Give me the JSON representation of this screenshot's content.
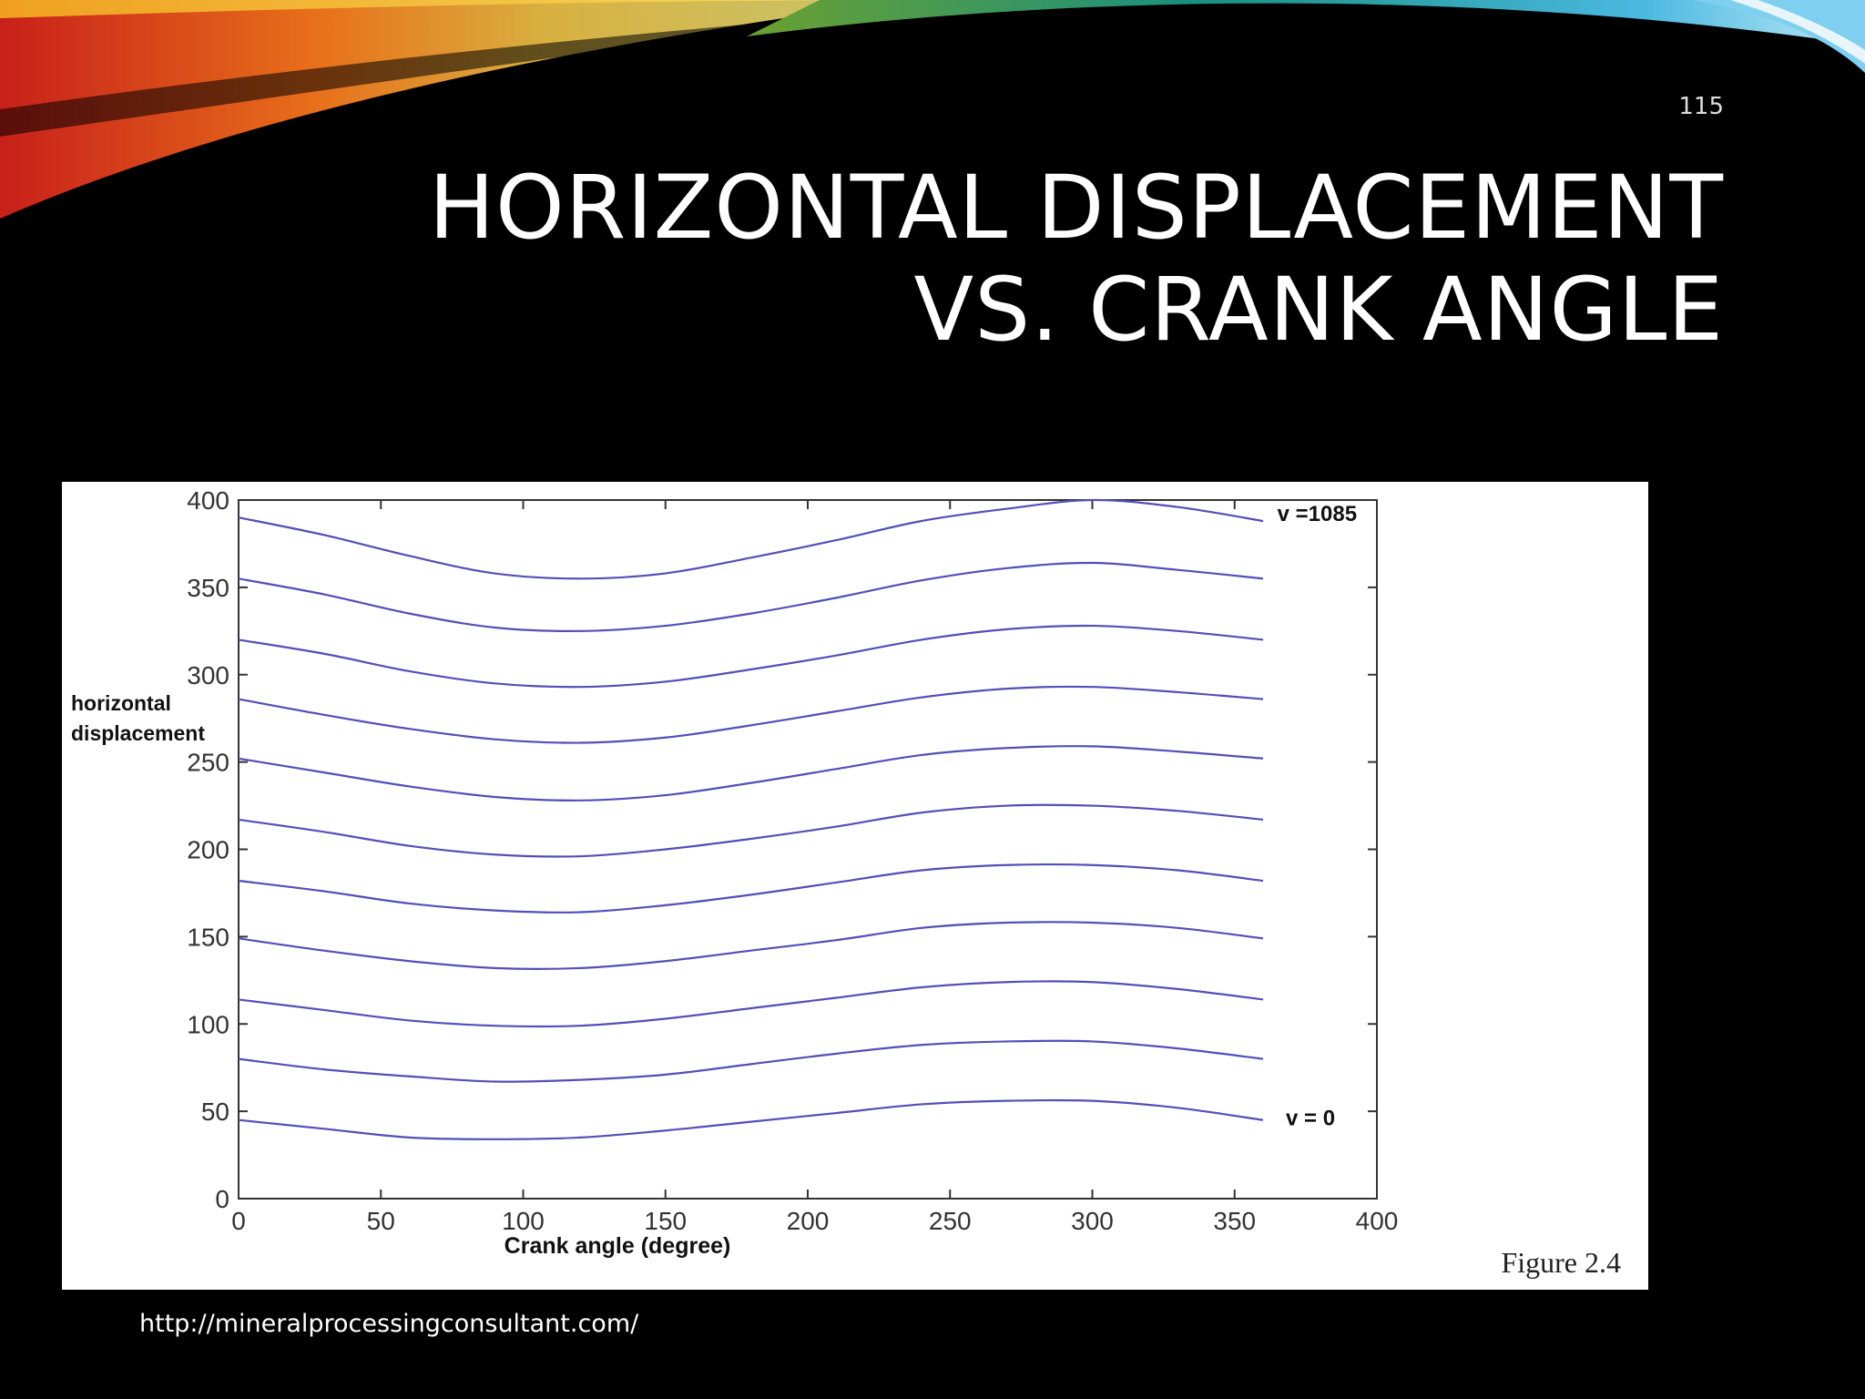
{
  "slide": {
    "number": "115",
    "title_line1": "HORIZONTAL DISPLACEMENT",
    "title_line2": "VS. CRANK ANGLE",
    "source_url": "http://mineralprocessingconsultant.com/"
  },
  "colors": {
    "background": "#000000",
    "title": "#ffffff",
    "curve": "#5050b8",
    "axis": "#333333"
  },
  "chart_data": {
    "type": "line",
    "xlabel": "Crank angle (degree)",
    "ylabel_line1": "horizontal",
    "ylabel_line2": "displacement",
    "figure_label": "Figure 2.4",
    "xlim": [
      0,
      400
    ],
    "ylim": [
      0,
      400
    ],
    "xticks": [
      0,
      50,
      100,
      150,
      200,
      250,
      300,
      350,
      400
    ],
    "yticks": [
      0,
      50,
      100,
      150,
      200,
      250,
      300,
      350,
      400
    ],
    "grid": false,
    "annotations": [
      {
        "text": "v =1085",
        "x": 365,
        "y": 388
      },
      {
        "text": "v = 0",
        "x": 368,
        "y": 42
      }
    ],
    "x": [
      0,
      30,
      60,
      90,
      120,
      150,
      180,
      210,
      240,
      270,
      300,
      330,
      360
    ],
    "series": [
      {
        "values": [
          45,
          40,
          35,
          34,
          35,
          39,
          44,
          49,
          54,
          56,
          56,
          52,
          45
        ]
      },
      {
        "values": [
          80,
          74,
          70,
          67,
          68,
          71,
          77,
          83,
          88,
          90,
          90,
          86,
          80
        ]
      },
      {
        "values": [
          114,
          108,
          102,
          99,
          99,
          103,
          109,
          115,
          121,
          124,
          124,
          120,
          114
        ]
      },
      {
        "values": [
          149,
          142,
          136,
          132,
          132,
          136,
          142,
          148,
          155,
          158,
          158,
          155,
          149
        ]
      },
      {
        "values": [
          182,
          176,
          169,
          165,
          164,
          168,
          174,
          181,
          188,
          191,
          191,
          188,
          182
        ]
      },
      {
        "values": [
          217,
          210,
          202,
          197,
          196,
          200,
          206,
          213,
          221,
          225,
          225,
          222,
          217
        ]
      },
      {
        "values": [
          252,
          244,
          236,
          230,
          228,
          231,
          238,
          246,
          254,
          258,
          259,
          256,
          252
        ]
      },
      {
        "values": [
          286,
          277,
          269,
          263,
          261,
          264,
          271,
          279,
          287,
          292,
          293,
          290,
          286
        ]
      },
      {
        "values": [
          320,
          312,
          302,
          295,
          293,
          296,
          303,
          311,
          320,
          326,
          328,
          325,
          320
        ]
      },
      {
        "values": [
          355,
          346,
          335,
          327,
          325,
          328,
          335,
          344,
          354,
          361,
          364,
          360,
          355
        ]
      },
      {
        "values": [
          390,
          380,
          368,
          358,
          355,
          358,
          367,
          377,
          388,
          395,
          400,
          396,
          388
        ]
      }
    ]
  }
}
